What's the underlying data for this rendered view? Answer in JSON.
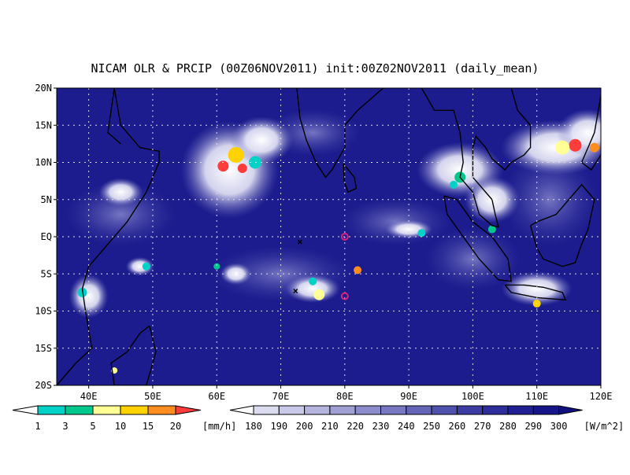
{
  "title": "NICAM OLR & PRCIP (00Z06NOV2011) init:00Z02NOV2011 (daily_mean)",
  "lat_labels": [
    "20N",
    "15N",
    "10N",
    "5N",
    "EQ",
    "5S",
    "10S",
    "15S",
    "20S"
  ],
  "lon_labels": [
    "40E",
    "50E",
    "60E",
    "70E",
    "80E",
    "90E",
    "100E",
    "110E",
    "120E"
  ],
  "precip_scale": {
    "labels": [
      "1",
      "3",
      "5",
      "10",
      "15",
      "20"
    ],
    "unit": "[mm/h]",
    "colors": [
      "#ffffff",
      "#00d2c8",
      "#00c88c",
      "#ffff96",
      "#ffd200",
      "#ff8c1e",
      "#ff3c3c"
    ]
  },
  "olr_scale": {
    "labels": [
      "180",
      "190",
      "200",
      "210",
      "220",
      "230",
      "240",
      "250",
      "260",
      "270",
      "280",
      "290",
      "300"
    ],
    "unit": "[W/m^2]",
    "colors": [
      "#ffffff",
      "#dcdcf0",
      "#c8c8e8",
      "#b4b4de",
      "#a0a0d4",
      "#8c8ccc",
      "#7878c2",
      "#6464b8",
      "#5050ae",
      "#3c3ca4",
      "#2d2d9c",
      "#202094",
      "#16168a",
      "#10107e"
    ]
  }
}
